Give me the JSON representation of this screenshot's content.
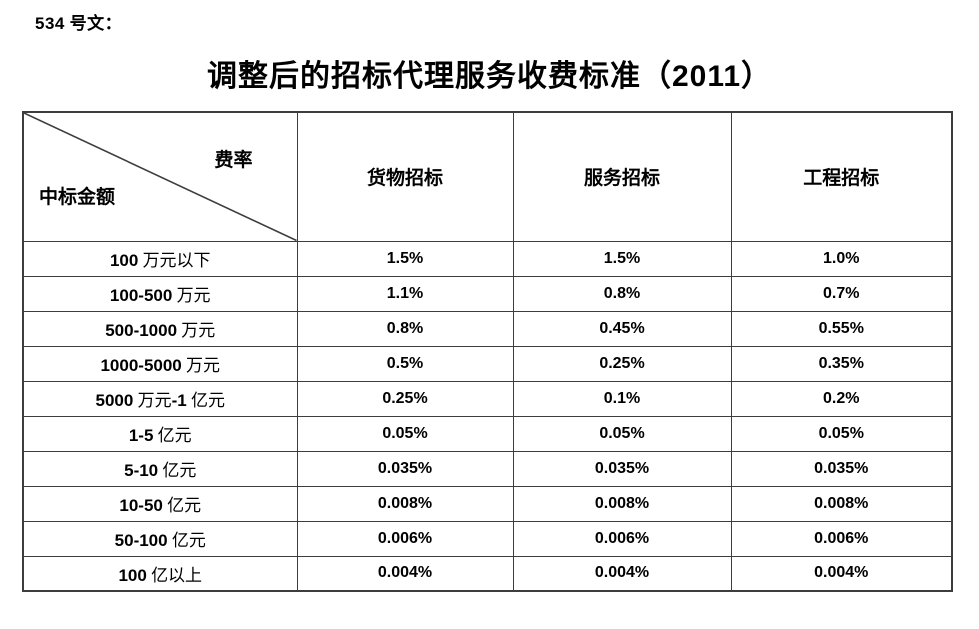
{
  "page": {
    "doc_number": "534 号文：",
    "title": "调整后的招标代理服务收费标准（2011）"
  },
  "table": {
    "corner": {
      "top_right_label": "费率",
      "bottom_left_label": "中标金额"
    },
    "columns": [
      "货物招标",
      "服务招标",
      "工程招标"
    ],
    "rows": [
      {
        "label": "100 万元以下",
        "values": [
          "1.5%",
          "1.5%",
          "1.0%"
        ]
      },
      {
        "label": "100-500 万元",
        "values": [
          "1.1%",
          "0.8%",
          "0.7%"
        ]
      },
      {
        "label": "500-1000 万元",
        "values": [
          "0.8%",
          "0.45%",
          "0.55%"
        ]
      },
      {
        "label": "1000-5000 万元",
        "values": [
          "0.5%",
          "0.25%",
          "0.35%"
        ]
      },
      {
        "label": "5000 万元-1 亿元",
        "values": [
          "0.25%",
          "0.1%",
          "0.2%"
        ]
      },
      {
        "label": "1-5 亿元",
        "values": [
          "0.05%",
          "0.05%",
          "0.05%"
        ]
      },
      {
        "label": "5-10 亿元",
        "values": [
          "0.035%",
          "0.035%",
          "0.035%"
        ]
      },
      {
        "label": "10-50 亿元",
        "values": [
          "0.008%",
          "0.008%",
          "0.008%"
        ]
      },
      {
        "label": "50-100 亿元",
        "values": [
          "0.006%",
          "0.006%",
          "0.006%"
        ]
      },
      {
        "label": "100 亿以上",
        "values": [
          "0.004%",
          "0.004%",
          "0.004%"
        ]
      }
    ],
    "border_color": "#3d3d3d"
  }
}
